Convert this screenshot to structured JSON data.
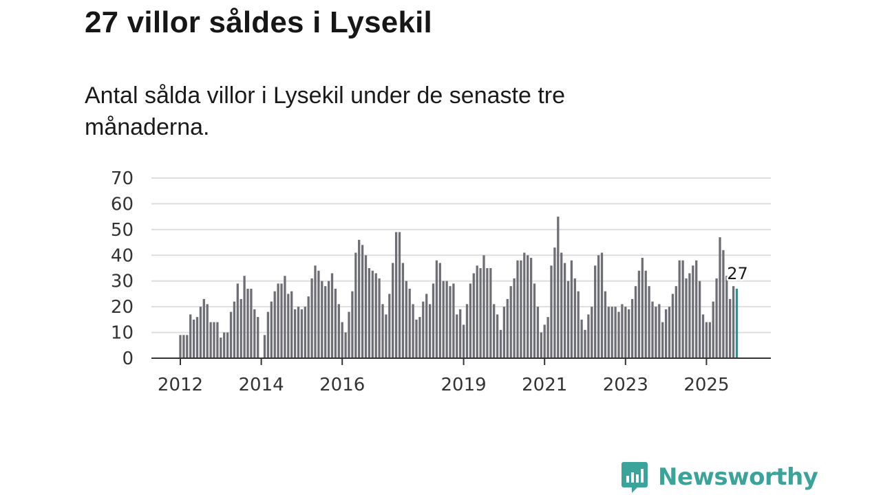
{
  "header": {
    "title": "27 villor såldes i Lysekil",
    "subtitle": "Antal sålda villor i Lysekil under de senaste tre månaderna."
  },
  "brand": {
    "name": "Newsworthy",
    "icon": "newsworthy-logo-icon",
    "color": "#3aa39a"
  },
  "colors": {
    "bar": "#6e6e76",
    "highlight": "#1f9a93",
    "grid": "#dedede",
    "axis": "#333333"
  },
  "chart_data": {
    "type": "bar",
    "title": "27 villor såldes i Lysekil",
    "subtitle": "Antal sålda villor i Lysekil under de senaste tre månaderna.",
    "xlabel": "",
    "ylabel": "",
    "ylim": [
      0,
      70
    ],
    "yticks": [
      0,
      10,
      20,
      30,
      40,
      50,
      60,
      70
    ],
    "grid": true,
    "legend": "none",
    "x_start": "2012-01",
    "frequency": "monthly, rolling three-month total",
    "xtick_labels": [
      {
        "label": "2012",
        "index": 0
      },
      {
        "label": "2014",
        "index": 24
      },
      {
        "label": "2016",
        "index": 48
      },
      {
        "label": "2019",
        "index": 84
      },
      {
        "label": "2021",
        "index": 108
      },
      {
        "label": "2023",
        "index": 132
      },
      {
        "label": "2025",
        "index": 156
      }
    ],
    "values": [
      9,
      9,
      9,
      17,
      15,
      16,
      20,
      23,
      21,
      14,
      14,
      14,
      8,
      10,
      10,
      18,
      22,
      29,
      23,
      32,
      27,
      27,
      19,
      16,
      0,
      9,
      18,
      22,
      26,
      29,
      29,
      32,
      25,
      26,
      19,
      20,
      19,
      20,
      24,
      31,
      36,
      34,
      30,
      28,
      30,
      33,
      27,
      21,
      14,
      10,
      18,
      26,
      41,
      46,
      44,
      40,
      35,
      34,
      33,
      31,
      21,
      17,
      25,
      37,
      49,
      49,
      37,
      30,
      27,
      21,
      15,
      16,
      22,
      25,
      21,
      29,
      38,
      37,
      30,
      30,
      28,
      29,
      17,
      19,
      13,
      21,
      29,
      33,
      36,
      35,
      40,
      35,
      35,
      21,
      17,
      11,
      20,
      23,
      28,
      31,
      38,
      38,
      41,
      40,
      39,
      29,
      20,
      10,
      13,
      16,
      36,
      43,
      55,
      41,
      37,
      30,
      38,
      31,
      26,
      15,
      11,
      17,
      20,
      36,
      40,
      41,
      26,
      20,
      20,
      20,
      18,
      21,
      20,
      19,
      23,
      28,
      34,
      39,
      34,
      28,
      22,
      20,
      21,
      14,
      19,
      20,
      25,
      28,
      38,
      38,
      31,
      33,
      36,
      38,
      30,
      17,
      14,
      14,
      22,
      31,
      47,
      42,
      32,
      23,
      28,
      27
    ],
    "highlight_index": 165,
    "data_labels": [
      {
        "index": 165,
        "text": "27"
      }
    ]
  }
}
